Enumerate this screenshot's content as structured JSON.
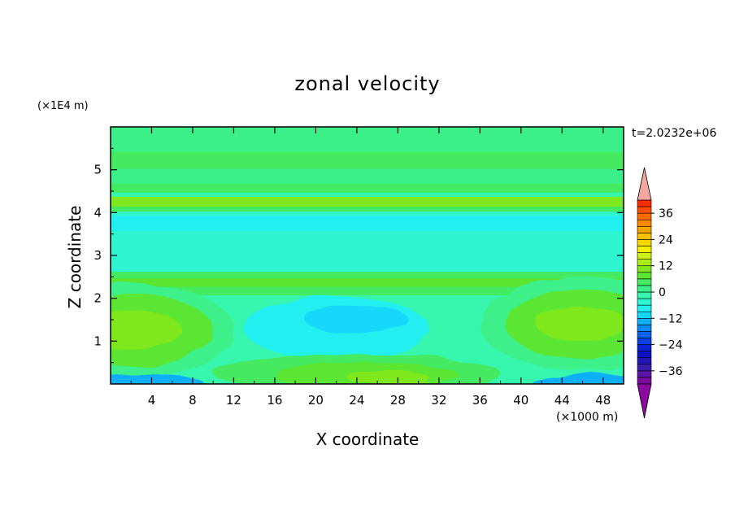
{
  "chart_data": {
    "type": "heatmap",
    "title": "zonal velocity",
    "xlabel": "X coordinate",
    "ylabel": "Z coordinate",
    "x_unit": "(×1000 m)",
    "y_unit": "(×1E4 m)",
    "time_label": "t=2.0232e+06",
    "xlim": [
      0,
      50
    ],
    "ylim": [
      0,
      6
    ],
    "x_ticks": [
      4,
      8,
      12,
      16,
      20,
      24,
      28,
      32,
      36,
      40,
      44,
      48
    ],
    "y_ticks": [
      1,
      2,
      3,
      4,
      5
    ],
    "colorbar": {
      "levels": [
        -42,
        -39,
        -36,
        -33,
        -30,
        -27,
        -24,
        -21,
        -18,
        -15,
        -12,
        -9,
        -6,
        -3,
        0,
        3,
        6,
        9,
        12,
        15,
        18,
        21,
        24,
        27,
        30,
        33,
        36,
        39,
        42
      ],
      "tick_labels": [
        "36",
        "24",
        "12",
        "0",
        "−12",
        "−24",
        "−36"
      ],
      "tick_values": [
        36,
        24,
        12,
        0,
        -12,
        -24,
        -36
      ],
      "colors": [
        "#7a0b9c",
        "#5a14a8",
        "#3c1ab0",
        "#2414b8",
        "#0f12c4",
        "#0a22d8",
        "#0a40e8",
        "#0a64f0",
        "#0a8af5",
        "#0cb0f8",
        "#14d8fa",
        "#22f0f0",
        "#2ef5d0",
        "#36f5ad",
        "#3cf089",
        "#44ea60",
        "#5ae630",
        "#7fe81e",
        "#a8ec18",
        "#d0f018",
        "#f5f000",
        "#f8d800",
        "#fbc000",
        "#fca400",
        "#fd8800",
        "#fe6c00",
        "#fe4e00",
        "#fe2c00",
        "#fa1200"
      ],
      "under_color": "#8a0aa0",
      "over_color": "#f4a7a0"
    },
    "layers": [
      {
        "z": [
          5.4,
          6.0
        ],
        "v": 2,
        "x": [
          0,
          50
        ]
      },
      {
        "z": [
          5.0,
          5.4
        ],
        "v": 4,
        "x": [
          0,
          50
        ]
      },
      {
        "z": [
          4.65,
          5.0
        ],
        "v": 2,
        "x": [
          0,
          50
        ]
      },
      {
        "z": [
          4.45,
          4.65
        ],
        "v": 4,
        "x": [
          0,
          50
        ]
      },
      {
        "z": [
          4.35,
          4.45
        ],
        "v": -3,
        "x": [
          0,
          50
        ]
      },
      {
        "z": [
          4.12,
          4.35
        ],
        "v": 9,
        "x": [
          0,
          50
        ]
      },
      {
        "z": [
          4.0,
          4.12
        ],
        "v": 5,
        "x": [
          0,
          50
        ]
      },
      {
        "z": [
          3.9,
          4.0
        ],
        "v": -4,
        "x": [
          0,
          50
        ]
      },
      {
        "z": [
          3.55,
          3.9
        ],
        "v": -8,
        "x": [
          0,
          50
        ]
      },
      {
        "z": [
          3.2,
          3.55
        ],
        "v": -6,
        "x": [
          0,
          50
        ]
      },
      {
        "z": [
          2.8,
          3.2
        ],
        "v": -4,
        "x": [
          0,
          50
        ]
      },
      {
        "z": [
          2.6,
          2.8
        ],
        "v": -6,
        "x": [
          0,
          50
        ]
      },
      {
        "z": [
          2.45,
          2.6
        ],
        "v": 3,
        "x": [
          0,
          50
        ]
      },
      {
        "z": [
          2.25,
          2.45
        ],
        "v": 8,
        "x": [
          0,
          50
        ]
      },
      {
        "z": [
          2.05,
          2.25
        ],
        "v": 4,
        "x": [
          0,
          50
        ]
      },
      {
        "z": [
          0.0,
          2.05
        ],
        "v": -3,
        "x": [
          0,
          50
        ]
      }
    ],
    "features": [
      {
        "cx": 2.0,
        "cz": 1.25,
        "rx": 10.0,
        "rz": 1.1,
        "v": 2
      },
      {
        "cx": 2.0,
        "cz": 1.25,
        "rx": 8.0,
        "rz": 0.85,
        "v": 6
      },
      {
        "cx": 2.0,
        "cz": 1.25,
        "rx": 5.0,
        "rz": 0.45,
        "v": 10
      },
      {
        "cx": 46.0,
        "cz": 1.4,
        "rx": 10.0,
        "rz": 1.1,
        "v": 2
      },
      {
        "cx": 46.0,
        "cz": 1.4,
        "rx": 7.5,
        "rz": 0.8,
        "v": 6
      },
      {
        "cx": 46.0,
        "cz": 1.4,
        "rx": 4.5,
        "rz": 0.4,
        "v": 11
      },
      {
        "cx": 22.0,
        "cz": 1.3,
        "rx": 9.0,
        "rz": 0.75,
        "v": -8
      },
      {
        "cx": 24.0,
        "cz": 1.5,
        "rx": 5.0,
        "rz": 0.35,
        "v": -10
      },
      {
        "cx": 24.0,
        "cz": 0.25,
        "rx": 14.0,
        "rz": 0.45,
        "v": 3
      },
      {
        "cx": 25.0,
        "cz": 0.2,
        "rx": 9.0,
        "rz": 0.3,
        "v": 8
      },
      {
        "cx": 27.0,
        "cz": 0.15,
        "rx": 4.0,
        "rz": 0.18,
        "v": 11
      },
      {
        "cx": 3.0,
        "cz": 0.05,
        "rx": 6.0,
        "rz": 0.18,
        "v": -14
      },
      {
        "cx": 47.0,
        "cz": 0.08,
        "rx": 6.0,
        "rz": 0.15,
        "v": -15
      }
    ]
  }
}
